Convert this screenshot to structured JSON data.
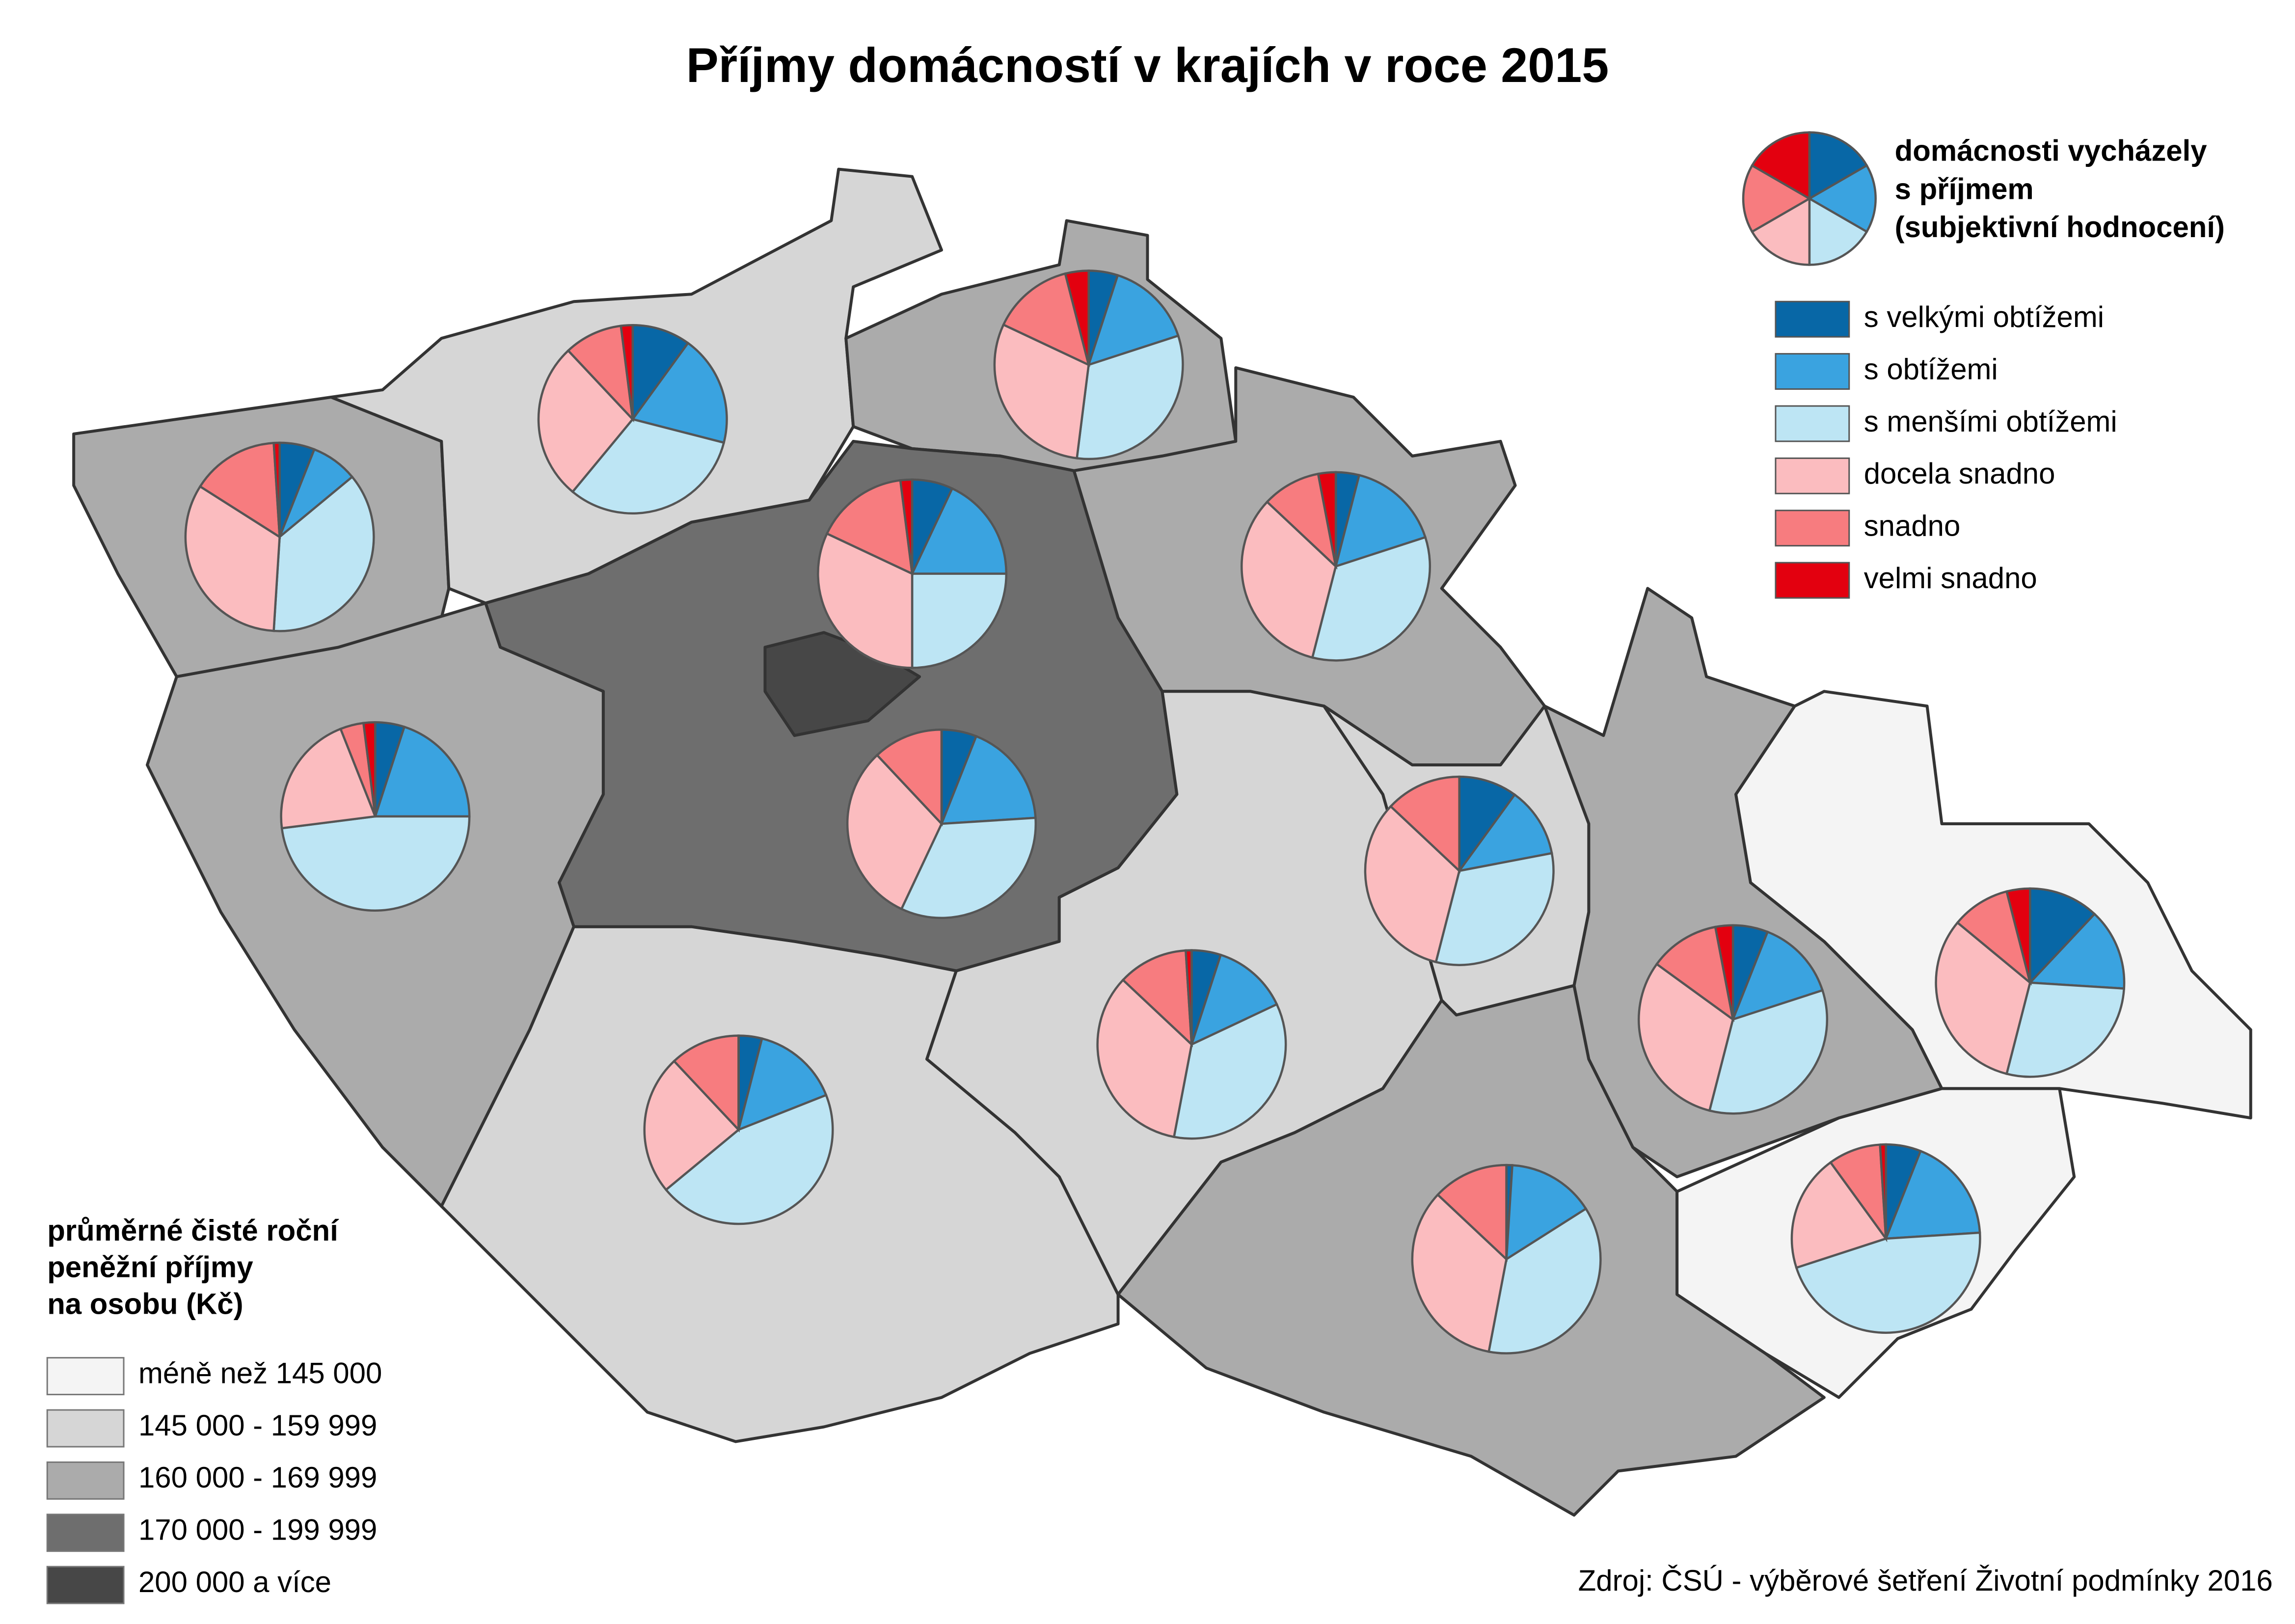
{
  "chart_data": {
    "type": "pie-map",
    "title": "Příjmy domácností v krajích v roce 2015",
    "pie_legend_title": [
      "domácnosti vycházely",
      "s příjmem",
      "(subjektivní hodnocení)"
    ],
    "categories": [
      "s velkými obtížemi",
      "s obtížemi",
      "s menšími obtížemi",
      "docela snadno",
      "snadno",
      "velmi snadno"
    ],
    "colors": [
      "#0867a6",
      "#3aa3e0",
      "#bde5f4",
      "#fbbcbf",
      "#f77c7f",
      "#e3000f"
    ],
    "choropleth_title": [
      "průměrné čisté roční",
      "peněžní příjmy",
      "na osobu (Kč)"
    ],
    "classes": [
      {
        "label": "méně než 145 000",
        "color": "#f4f4f4"
      },
      {
        "label": "145 000 - 159 999",
        "color": "#d6d6d6"
      },
      {
        "label": "160 000 - 169 999",
        "color": "#ababab"
      },
      {
        "label": "170 000 - 199 999",
        "color": "#6e6e6e"
      },
      {
        "label": "200 000 a více",
        "color": "#474747"
      }
    ],
    "source": "Zdroj: ČSÚ - výběrové šetření Životní podmínky 2016",
    "regions": [
      {
        "color": "#ababab",
        "values": [
          6,
          8,
          37,
          33,
          15,
          1
        ]
      },
      {
        "color": "#d6d6d6",
        "values": [
          10,
          19,
          32,
          27,
          10,
          2
        ]
      },
      {
        "color": "#ababab",
        "values": [
          5,
          15,
          32,
          30,
          14,
          4
        ]
      },
      {
        "color": "#ababab",
        "values": [
          4,
          16,
          34,
          33,
          10,
          3
        ]
      },
      {
        "color": "#6e6e6e",
        "values": [
          6,
          18,
          33,
          31,
          12,
          0
        ]
      },
      {
        "color": "#474747",
        "values": [
          7,
          18,
          25,
          32,
          16,
          2
        ]
      },
      {
        "color": "#ababab",
        "values": [
          5,
          20,
          48,
          21,
          4,
          2
        ]
      },
      {
        "color": "#d6d6d6",
        "values": [
          4,
          15,
          45,
          24,
          12,
          0
        ]
      },
      {
        "color": "#d6d6d6",
        "values": [
          5,
          13,
          35,
          34,
          12,
          1
        ]
      },
      {
        "color": "#d6d6d6",
        "values": [
          10,
          12,
          32,
          33,
          13,
          0
        ]
      },
      {
        "color": "#ababab",
        "values": [
          1,
          15,
          37,
          34,
          13,
          0
        ]
      },
      {
        "color": "#ababab",
        "values": [
          6,
          14,
          34,
          31,
          12,
          3
        ]
      },
      {
        "color": "#f4f4f4",
        "values": [
          12,
          14,
          28,
          32,
          10,
          4
        ]
      },
      {
        "color": "#f4f4f4",
        "values": [
          6,
          18,
          46,
          20,
          9,
          1
        ]
      }
    ]
  }
}
